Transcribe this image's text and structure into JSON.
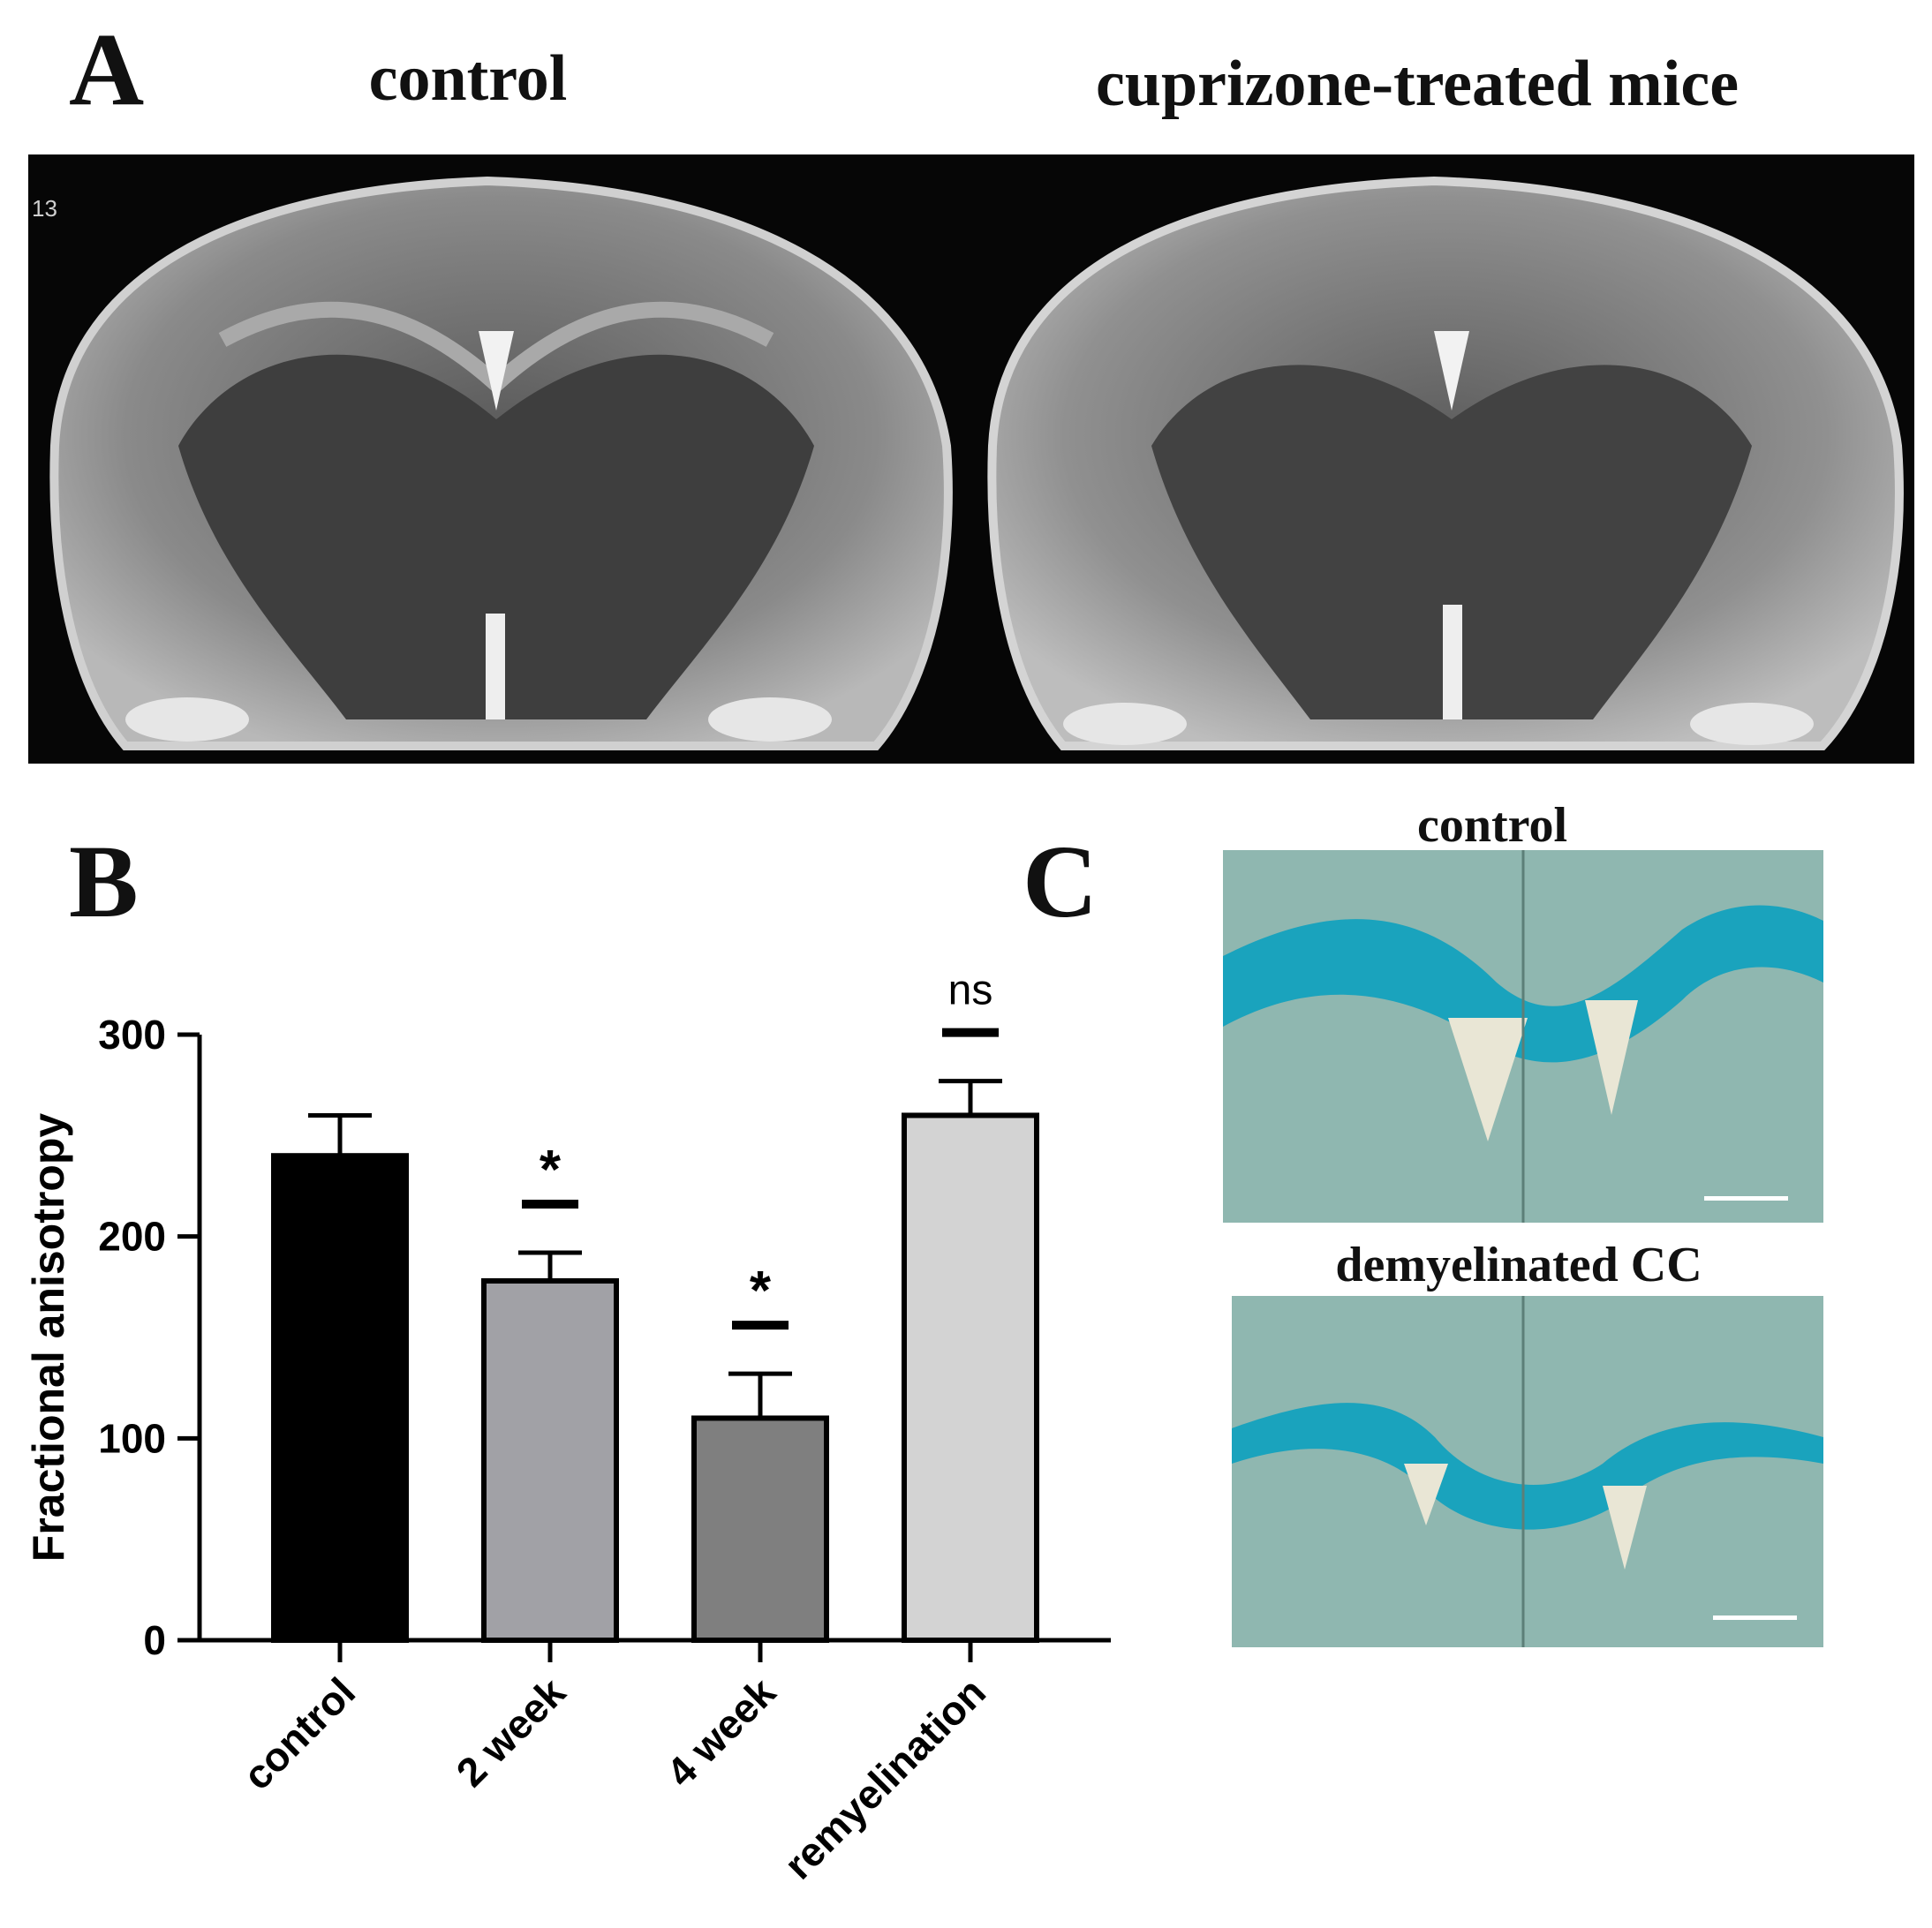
{
  "panels": {
    "a": {
      "letter": "A",
      "left_title": "control",
      "right_title": "cuprizone-treated mice",
      "slice_label": "13"
    },
    "b": {
      "letter": "B"
    },
    "c": {
      "letter": "C",
      "top_title": "control",
      "bottom_title": "demyelinated CC"
    }
  },
  "chart_data": {
    "type": "bar",
    "categories": [
      "control",
      "2 week",
      "4 week",
      "remyelination"
    ],
    "values": [
      240,
      178,
      110,
      260
    ],
    "errors": [
      20,
      14,
      22,
      17
    ],
    "significance": [
      "",
      "*",
      "*",
      "ns"
    ],
    "ylabel": "Fractional anisotropy",
    "xlabel": "",
    "ylim": [
      0,
      300
    ],
    "yticks": [
      0,
      100,
      200,
      300
    ],
    "bar_colors": [
      "#000000",
      "#a1a1a6",
      "#7f7f7f",
      "#d3d3d3"
    ],
    "grid": false,
    "legend": "none"
  },
  "colors": {
    "stain_blue": "#1aa3bd",
    "stain_background": "#8fb7b0",
    "mri_background": "#060606"
  }
}
